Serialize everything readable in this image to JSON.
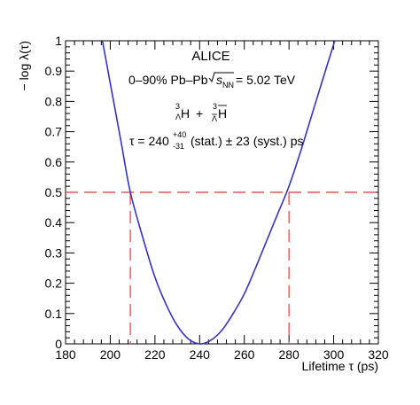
{
  "chart_data": {
    "type": "line",
    "xlabel": "Lifetime τ (ps)",
    "ylabel": "− log λ(τ)",
    "xlim": [
      180,
      320
    ],
    "ylim": [
      0,
      1
    ],
    "x_ticks": [
      180,
      200,
      220,
      240,
      260,
      280,
      300,
      320
    ],
    "y_ticks": [
      0,
      0.1,
      0.2,
      0.3,
      0.4,
      0.5,
      0.6,
      0.7,
      0.8,
      0.9,
      1
    ],
    "y_tick_labels": [
      "0",
      "0.1",
      "0.2",
      "0.3",
      "0.4",
      "0.5",
      "0.6",
      "0.7",
      "0.8",
      "0.9",
      "1"
    ],
    "grid": false,
    "series": [
      {
        "color": "#3333cc",
        "x": [
          196.5,
          200,
          205,
          209,
          215,
          220,
          225,
          230,
          235,
          240,
          245,
          250,
          255,
          260,
          265,
          270,
          275,
          280,
          285,
          290,
          295,
          300.5
        ],
        "y": [
          1.0,
          0.86,
          0.66,
          0.5,
          0.34,
          0.22,
          0.13,
          0.06,
          0.016,
          0.0,
          0.012,
          0.045,
          0.1,
          0.165,
          0.25,
          0.34,
          0.43,
          0.52,
          0.63,
          0.75,
          0.87,
          1.0
        ]
      }
    ],
    "reference_lines": {
      "color": "#ff4d4d",
      "horizontal_y": 0.5,
      "vertical_x": [
        209,
        280
      ]
    },
    "annotations": {
      "experiment": "ALICE",
      "system_prefix": "0–90% Pb–Pb",
      "sqrt_s": "s",
      "sqrt_s_sub": "NN",
      "energy": "= 5.02 TeV",
      "hyper_mass": "3",
      "hyper_sub": "Λ",
      "hyper_letter": "H",
      "hyper_plus": "+",
      "result_main": "τ = 240",
      "result_up": "+40",
      "result_down": "-31",
      "result_rest": "(stat.) ± 23 (syst.) ps"
    }
  }
}
